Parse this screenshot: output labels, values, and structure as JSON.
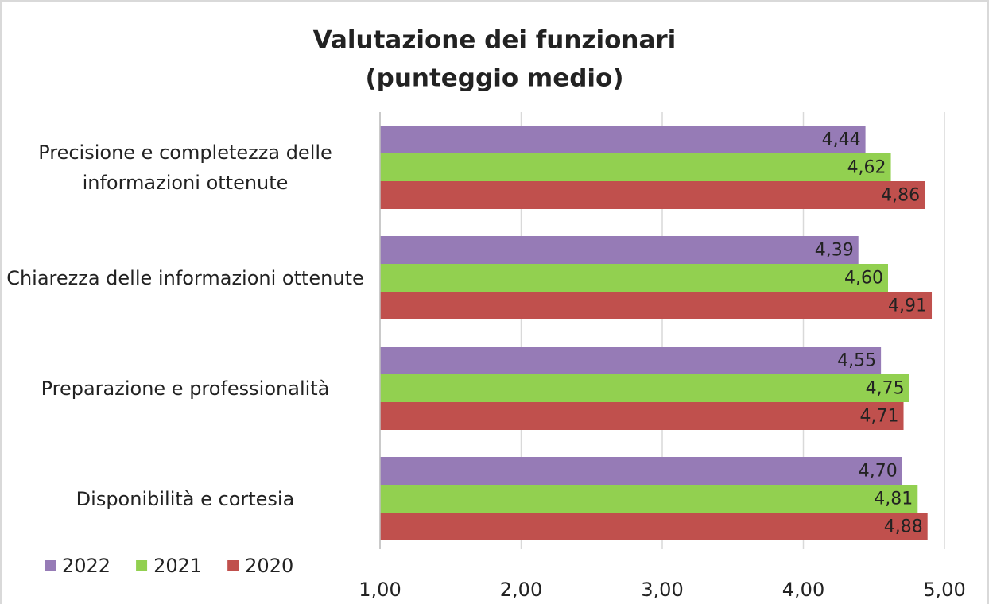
{
  "chart_data": {
    "type": "barh",
    "title": [
      "Valutazione dei funzionari",
      "(punteggio medio)"
    ],
    "categories": [
      "Precisione e completezza delle informazioni ottenute",
      "Chiarezza delle informazioni ottenute",
      "Preparazione e professionalità",
      "Disponibilità e cortesia"
    ],
    "series": [
      {
        "name": "2022",
        "color": "#967bb6",
        "values": [
          4.44,
          4.39,
          4.55,
          4.7
        ],
        "value_labels": [
          "4,44",
          "4,39",
          "4,55",
          "4,70"
        ]
      },
      {
        "name": "2021",
        "color": "#92d050",
        "values": [
          4.62,
          4.6,
          4.75,
          4.81
        ],
        "value_labels": [
          "4,62",
          "4,60",
          "4,75",
          "4,81"
        ]
      },
      {
        "name": "2020",
        "color": "#c0504d",
        "values": [
          4.86,
          4.91,
          4.71,
          4.88
        ],
        "value_labels": [
          "4,86",
          "4,91",
          "4,71",
          "4,88"
        ]
      }
    ],
    "xlim": [
      1,
      5
    ],
    "xticks": [
      {
        "value": 1,
        "label": "1,00"
      },
      {
        "value": 2,
        "label": "2,00"
      },
      {
        "value": 3,
        "label": "3,00"
      },
      {
        "value": 4,
        "label": "4,00"
      },
      {
        "value": 5,
        "label": "5,00"
      }
    ],
    "grid": true,
    "legend": "bottom-left"
  }
}
